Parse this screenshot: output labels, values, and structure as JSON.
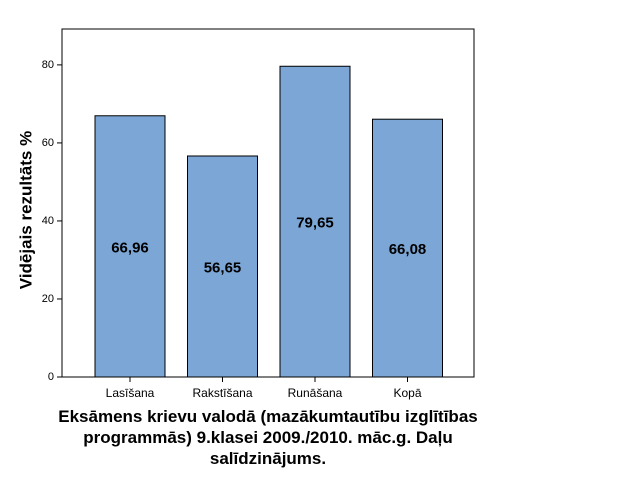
{
  "chart_data": {
    "type": "bar",
    "x_label": "Eksāmens krievu valodā (mazākumtautību izglītības programmās) 9.klasei 2009./2010. māc.g. Daļu salīdzinājums.",
    "y_label": "Vidējais rezultāts %",
    "categories": [
      "Lasīšana",
      "Rakstīšana",
      "Runāšana",
      "Kopā"
    ],
    "values": [
      66.96,
      56.65,
      79.65,
      66.08
    ],
    "value_labels": [
      "66,96",
      "56,65",
      "79,65",
      "66,08"
    ],
    "color": "#7ba6d6",
    "ylim": [
      0,
      89.2
    ],
    "yticks": [
      0,
      20,
      40,
      60,
      80
    ],
    "grid": false
  }
}
